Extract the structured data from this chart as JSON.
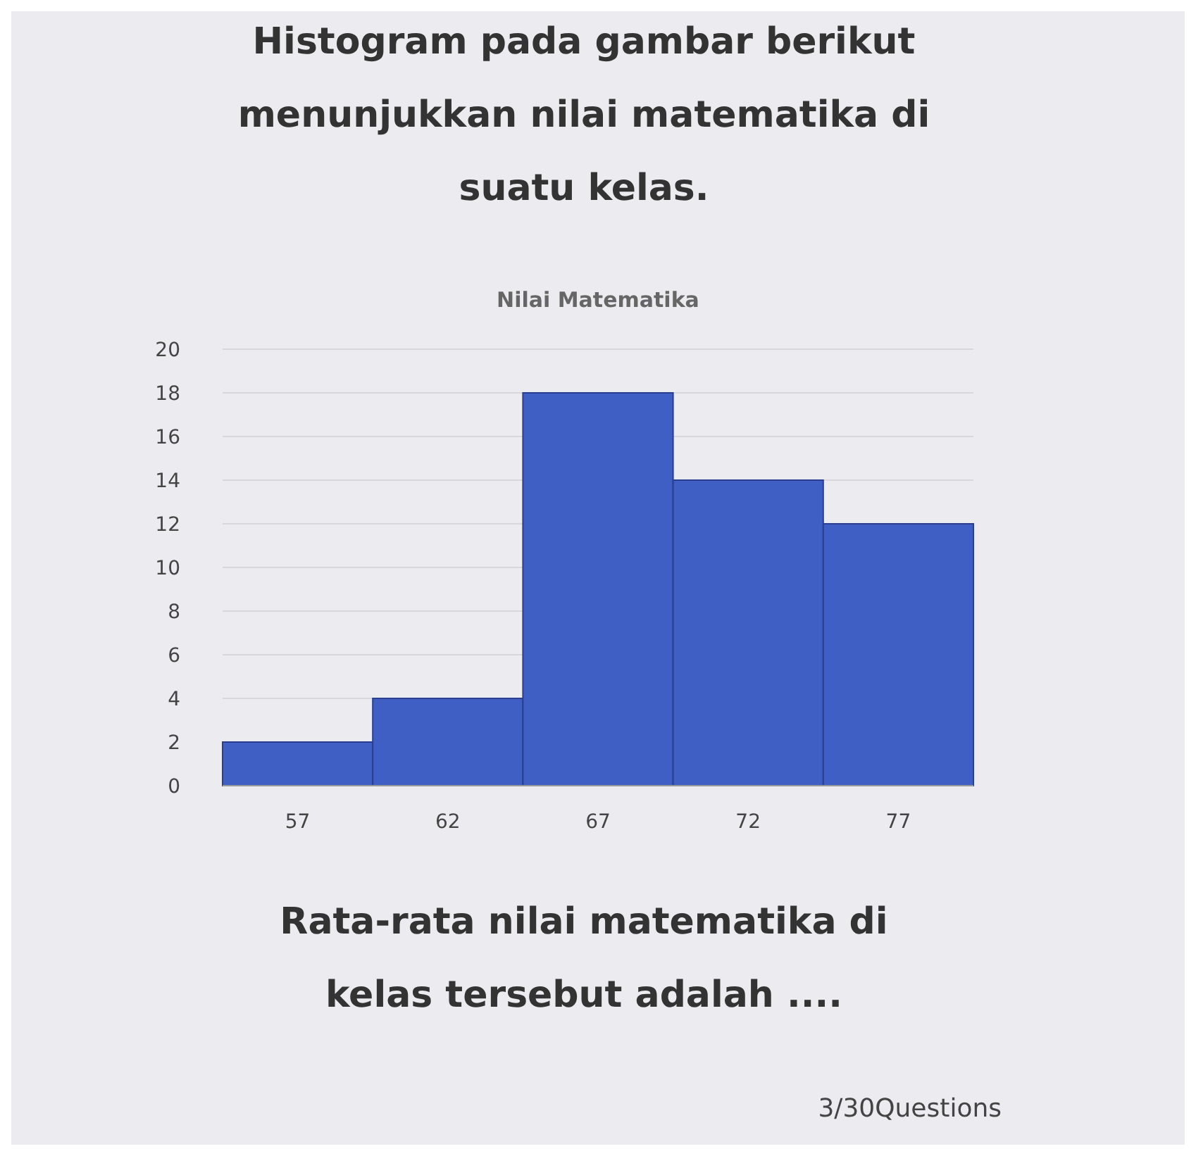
{
  "chart_data": {
    "type": "histogram",
    "title": "Nilai Matematika",
    "annotations": [
      "Histogram pada gambar berikut menunjukkan nilai matematika di suatu kelas.",
      "Rata-rata nilai matematika di kelas tersebut adalah ....",
      "3/30Questions"
    ],
    "bins": [
      54.5,
      59.5,
      64.5,
      69.5,
      74.5,
      79.5
    ],
    "values": [
      2,
      4,
      18,
      14,
      12
    ],
    "color": "#3f5fc4",
    "xlim": [
      54.5,
      79.5
    ],
    "xticks": [
      57,
      62,
      67,
      72,
      77
    ],
    "ylim": [
      0,
      20
    ],
    "yticks": [
      0,
      2,
      4,
      6,
      8,
      10,
      12,
      14,
      16,
      18,
      20
    ],
    "grid": "y"
  }
}
